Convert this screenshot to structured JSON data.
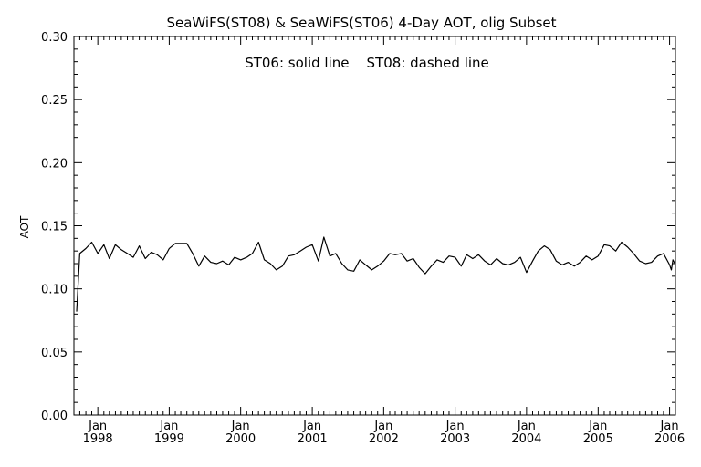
{
  "chart_data": {
    "type": "line",
    "title": "SeaWiFS(ST08) & SeaWiFS(ST06) 4-Day AOT, olig Subset",
    "annotation": "ST06: solid line    ST08: dashed line",
    "xlabel": "",
    "ylabel": "AOT",
    "ylim": [
      0.0,
      0.3
    ],
    "xlim": [
      "1997-09-01",
      "2006-01-31"
    ],
    "grid": false,
    "y_ticks": [
      "0.00",
      "0.05",
      "0.10",
      "0.15",
      "0.20",
      "0.25",
      "0.30"
    ],
    "x_ticks": [
      {
        "month": "Jan",
        "year": "1998"
      },
      {
        "month": "Jan",
        "year": "1999"
      },
      {
        "month": "Jan",
        "year": "2000"
      },
      {
        "month": "Jan",
        "year": "2001"
      },
      {
        "month": "Jan",
        "year": "2002"
      },
      {
        "month": "Jan",
        "year": "2003"
      },
      {
        "month": "Jan",
        "year": "2004"
      },
      {
        "month": "Jan",
        "year": "2005"
      },
      {
        "month": "Jan",
        "year": "2006"
      }
    ],
    "series": [
      {
        "name": "ST06",
        "style": "solid",
        "color": "#000000",
        "points": [
          [
            "1997-09-15",
            0.082
          ],
          [
            "1997-10-01",
            0.128
          ],
          [
            "1997-11-01",
            0.132
          ],
          [
            "1997-12-01",
            0.137
          ],
          [
            "1998-01-01",
            0.128
          ],
          [
            "1998-02-01",
            0.135
          ],
          [
            "1998-03-01",
            0.124
          ],
          [
            "1998-04-01",
            0.135
          ],
          [
            "1998-05-01",
            0.131
          ],
          [
            "1998-06-01",
            0.128
          ],
          [
            "1998-07-01",
            0.125
          ],
          [
            "1998-08-01",
            0.134
          ],
          [
            "1998-09-01",
            0.124
          ],
          [
            "1998-10-01",
            0.129
          ],
          [
            "1998-11-01",
            0.127
          ],
          [
            "1998-12-01",
            0.123
          ],
          [
            "1999-01-01",
            0.132
          ],
          [
            "1999-02-01",
            0.136
          ],
          [
            "1999-03-01",
            0.136
          ],
          [
            "1999-04-01",
            0.136
          ],
          [
            "1999-05-01",
            0.128
          ],
          [
            "1999-06-01",
            0.118
          ],
          [
            "1999-07-01",
            0.126
          ],
          [
            "1999-08-01",
            0.121
          ],
          [
            "1999-09-01",
            0.12
          ],
          [
            "1999-10-01",
            0.122
          ],
          [
            "1999-11-01",
            0.119
          ],
          [
            "1999-12-01",
            0.125
          ],
          [
            "2000-01-01",
            0.123
          ],
          [
            "2000-02-01",
            0.125
          ],
          [
            "2000-03-01",
            0.128
          ],
          [
            "2000-04-01",
            0.137
          ],
          [
            "2000-05-01",
            0.123
          ],
          [
            "2000-06-01",
            0.12
          ],
          [
            "2000-07-01",
            0.115
          ],
          [
            "2000-08-01",
            0.118
          ],
          [
            "2000-09-01",
            0.126
          ],
          [
            "2000-10-01",
            0.127
          ],
          [
            "2000-11-01",
            0.13
          ],
          [
            "2000-12-01",
            0.133
          ],
          [
            "2001-01-01",
            0.135
          ],
          [
            "2001-02-01",
            0.122
          ],
          [
            "2001-03-01",
            0.141
          ],
          [
            "2001-04-01",
            0.126
          ],
          [
            "2001-05-01",
            0.128
          ],
          [
            "2001-06-01",
            0.12
          ],
          [
            "2001-07-01",
            0.115
          ],
          [
            "2001-08-01",
            0.114
          ],
          [
            "2001-09-01",
            0.123
          ],
          [
            "2001-10-01",
            0.119
          ],
          [
            "2001-11-01",
            0.115
          ],
          [
            "2001-12-01",
            0.118
          ],
          [
            "2002-01-01",
            0.122
          ],
          [
            "2002-02-01",
            0.128
          ],
          [
            "2002-03-01",
            0.127
          ],
          [
            "2002-04-01",
            0.128
          ],
          [
            "2002-05-01",
            0.122
          ],
          [
            "2002-06-01",
            0.124
          ],
          [
            "2002-07-01",
            0.117
          ],
          [
            "2002-08-01",
            0.112
          ],
          [
            "2002-09-01",
            0.118
          ],
          [
            "2002-10-01",
            0.123
          ],
          [
            "2002-11-01",
            0.121
          ],
          [
            "2002-12-01",
            0.126
          ],
          [
            "2003-01-01",
            0.125
          ],
          [
            "2003-02-01",
            0.118
          ],
          [
            "2003-03-01",
            0.127
          ],
          [
            "2003-04-01",
            0.124
          ],
          [
            "2003-05-01",
            0.127
          ],
          [
            "2003-06-01",
            0.122
          ],
          [
            "2003-07-01",
            0.119
          ],
          [
            "2003-08-01",
            0.124
          ],
          [
            "2003-09-01",
            0.12
          ],
          [
            "2003-10-01",
            0.119
          ],
          [
            "2003-11-01",
            0.121
          ],
          [
            "2003-12-01",
            0.125
          ],
          [
            "2004-01-01",
            0.113
          ],
          [
            "2004-02-01",
            0.122
          ],
          [
            "2004-03-01",
            0.13
          ],
          [
            "2004-04-01",
            0.134
          ],
          [
            "2004-05-01",
            0.131
          ],
          [
            "2004-06-01",
            0.122
          ],
          [
            "2004-07-01",
            0.119
          ],
          [
            "2004-08-01",
            0.121
          ],
          [
            "2004-09-01",
            0.118
          ],
          [
            "2004-10-01",
            0.121
          ],
          [
            "2004-11-01",
            0.126
          ],
          [
            "2004-12-01",
            0.123
          ],
          [
            "2005-01-01",
            0.126
          ],
          [
            "2005-02-01",
            0.135
          ],
          [
            "2005-03-01",
            0.134
          ],
          [
            "2005-04-01",
            0.13
          ],
          [
            "2005-05-01",
            0.137
          ],
          [
            "2005-06-01",
            0.133
          ],
          [
            "2005-07-01",
            0.128
          ],
          [
            "2005-08-01",
            0.122
          ],
          [
            "2005-09-01",
            0.12
          ],
          [
            "2005-10-01",
            0.121
          ],
          [
            "2005-11-01",
            0.126
          ],
          [
            "2005-12-01",
            0.128
          ],
          [
            "2006-01-01",
            0.119
          ],
          [
            "2006-01-10",
            0.115
          ],
          [
            "2006-01-18",
            0.123
          ],
          [
            "2006-01-28",
            0.12
          ]
        ]
      }
    ]
  }
}
